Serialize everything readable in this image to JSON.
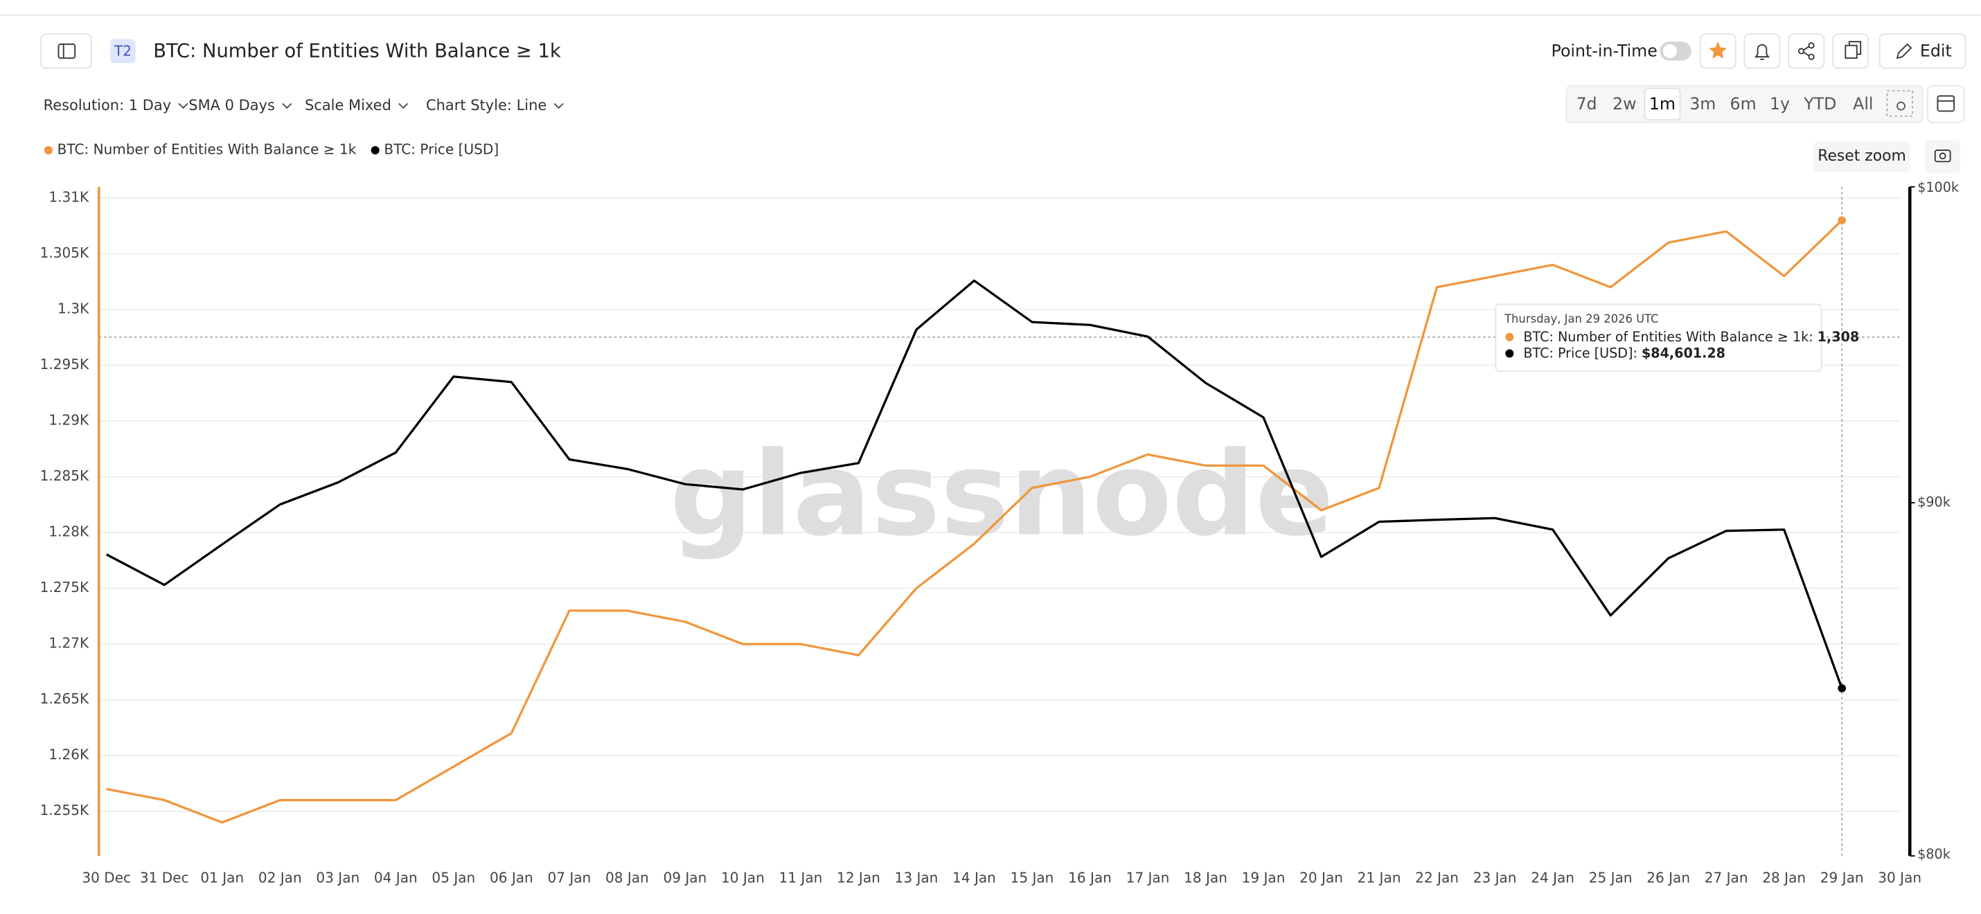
{
  "header": {
    "badge": "T2",
    "title": "BTC: Number of Entities With Balance ≥ 1k",
    "point_in_time": "Point-in-Time",
    "edit": "Edit"
  },
  "toolbar": {
    "dropdowns": [
      "Resolution: 1 Day",
      "SMA 0 Days",
      "Scale Mixed",
      "Chart Style: Line"
    ],
    "ranges": [
      "7d",
      "2w",
      "1m",
      "3m",
      "6m",
      "1y",
      "YTD",
      "All"
    ],
    "selected_range": "1m",
    "reset_zoom": "Reset zoom"
  },
  "watermark": "glassnode",
  "chart_data": {
    "type": "line",
    "categories": [
      "30 Dec",
      "31 Dec",
      "01 Jan",
      "02 Jan",
      "03 Jan",
      "04 Jan",
      "05 Jan",
      "06 Jan",
      "07 Jan",
      "08 Jan",
      "09 Jan",
      "10 Jan",
      "11 Jan",
      "12 Jan",
      "13 Jan",
      "14 Jan",
      "15 Jan",
      "16 Jan",
      "17 Jan",
      "18 Jan",
      "19 Jan",
      "20 Jan",
      "21 Jan",
      "22 Jan",
      "23 Jan",
      "24 Jan",
      "25 Jan",
      "26 Jan",
      "27 Jan",
      "28 Jan",
      "29 Jan",
      "30 Jan"
    ],
    "series": [
      {
        "name": "BTC: Number of Entities With Balance ≥ 1k",
        "color": "#f0963c",
        "values": [
          1257,
          1256,
          1254,
          1256,
          1256,
          1256,
          1259,
          1262,
          1273,
          1273,
          1272,
          1270,
          1270,
          1269,
          1275,
          1279,
          1284,
          1285,
          1287,
          1286,
          1286,
          1282,
          1284,
          1302,
          1303,
          1304,
          1302,
          1306,
          1307,
          1303,
          1308,
          null
        ]
      },
      {
        "name": "BTC: Price [USD]",
        "color": "#000000",
        "axis": "y2",
        "values": [
          88460,
          87570,
          88760,
          89950,
          90610,
          91520,
          93870,
          93700,
          91310,
          91020,
          90560,
          90400,
          90900,
          91200,
          95350,
          96920,
          95590,
          95500,
          95130,
          93670,
          92600,
          88390,
          89430,
          89490,
          89540,
          89200,
          86680,
          88350,
          89160,
          89200,
          84601.28,
          null
        ]
      }
    ],
    "ylim": [
      1251,
      1311
    ],
    "yticks": [
      {
        "value": 1255,
        "label": "1.255K"
      },
      {
        "value": 1260,
        "label": "1.26K"
      },
      {
        "value": 1265,
        "label": "1.265K"
      },
      {
        "value": 1270,
        "label": "1.27K"
      },
      {
        "value": 1275,
        "label": "1.275K"
      },
      {
        "value": 1280,
        "label": "1.28K"
      },
      {
        "value": 1285,
        "label": "1.285K"
      },
      {
        "value": 1290,
        "label": "1.29K"
      },
      {
        "value": 1295,
        "label": "1.295K"
      },
      {
        "value": 1300,
        "label": "1.3K"
      },
      {
        "value": 1305,
        "label": "1.305K"
      },
      {
        "value": 1310,
        "label": "1.31K"
      }
    ],
    "y2lim": [
      80000,
      100000
    ],
    "y2_log": true,
    "y2ticks": [
      {
        "value": 80000,
        "label": "$80k"
      },
      {
        "value": 90000,
        "label": "$90k"
      },
      {
        "value": 100000,
        "label": "$100k"
      }
    ],
    "grid": true,
    "legend": "top-left",
    "tooltip": {
      "date": "Thursday, Jan 29 2026 UTC",
      "rows": [
        {
          "label": "BTC: Number of Entities With Balance ≥ 1k: ",
          "value": "1,308"
        },
        {
          "label": "BTC: Price [USD]: ",
          "value": "$84,601.28"
        }
      ]
    }
  }
}
